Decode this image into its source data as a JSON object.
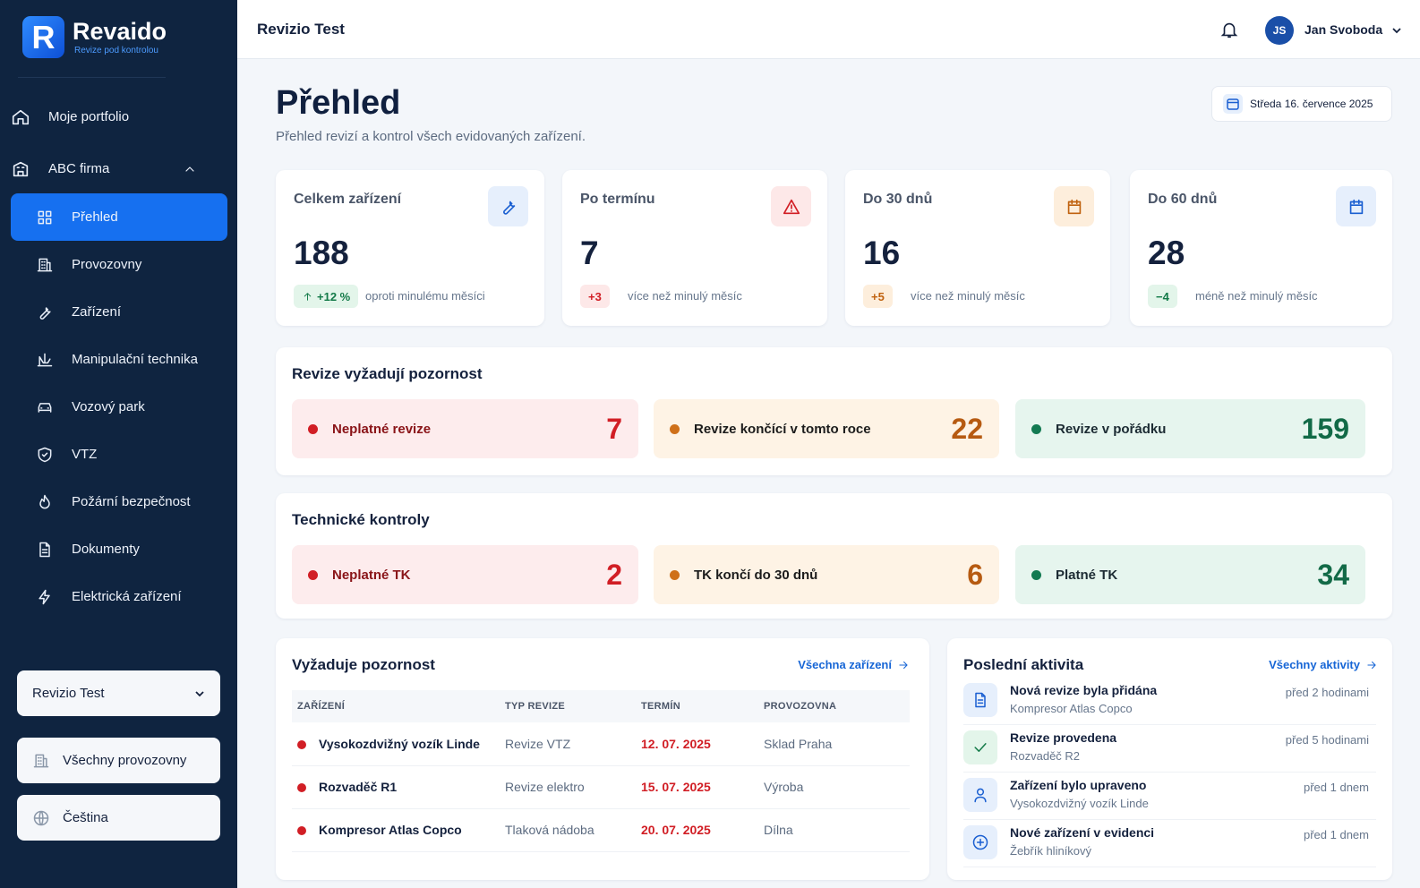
{
  "brand": {
    "name": "Revaido",
    "tagline": "Revize pod kontrolou",
    "logo_letter": "R"
  },
  "sidebar": {
    "top": [
      "Moje portfolio",
      "ABC firma"
    ],
    "items": [
      "Přehled",
      "Provozovny",
      "Zařízení",
      "Manipulační technika",
      "Vozový park",
      "VTZ",
      "Požární bezpečnost",
      "Dokumenty",
      "Elektrická zařízení"
    ],
    "selector": "Revizio Test",
    "buttons": [
      "Všechny provozovny",
      "Čeština"
    ]
  },
  "header": {
    "title": "Revizio Test",
    "user_initials": "JS",
    "user_name": "Jan Svoboda"
  },
  "page": {
    "title": "Přehled",
    "subtitle": "Přehled revizí a kontrol všech evidovaných zařízení.",
    "date": "Středa 16. července 2025"
  },
  "stats": [
    {
      "label": "Celkem zařízení",
      "value": 188,
      "delta": "+12 %",
      "note": "oproti minulému měsíci"
    },
    {
      "label": "Po termínu",
      "value": 7,
      "delta": "+3",
      "note": "více než minulý měsíc"
    },
    {
      "label": "Do 30 dnů",
      "value": 16,
      "delta": "+5",
      "note": "více než minulý měsíc"
    },
    {
      "label": "Do 60 dnů",
      "value": 28,
      "delta": "−4",
      "note": "méně než minulý měsíc"
    }
  ],
  "revisions": {
    "title": "Revize vyžadují pozornost",
    "items": [
      {
        "label": "Neplatné revize",
        "value": 7
      },
      {
        "label": "Revize končící v tomto roce",
        "value": 22
      },
      {
        "label": "Revize v pořádku",
        "value": 159
      }
    ]
  },
  "tk": {
    "title": "Technické kontroly",
    "items": [
      {
        "label": "Neplatné TK",
        "value": 2
      },
      {
        "label": "TK končí do 30 dnů",
        "value": 6
      },
      {
        "label": "Platné TK",
        "value": 34
      }
    ]
  },
  "attention": {
    "title": "Vyžaduje pozornost",
    "link": "Všechna zařízení",
    "columns": [
      "ZAŘÍZENÍ",
      "TYP REVIZE",
      "TERMÍN",
      "PROVOZOVNA"
    ],
    "rows": [
      [
        "Vysokozdvižný vozík Linde",
        "Revize VTZ",
        "12. 07. 2025",
        "Sklad Praha"
      ],
      [
        "Rozvaděč R1",
        "Revize elektro",
        "15. 07. 2025",
        "Výroba"
      ],
      [
        "Kompresor Atlas Copco",
        "Tlaková nádoba",
        "20. 07. 2025",
        "Dílna"
      ]
    ]
  },
  "activity": {
    "title": "Poslední aktivita",
    "link": "Všechny aktivity",
    "items": [
      {
        "title": "Nová revize byla přidána",
        "subtitle": "Kompresor Atlas Copco",
        "time": "před 2 hodinami"
      },
      {
        "title": "Revize provedena",
        "subtitle": "Rozvaděč R2",
        "time": "před 5 hodinami"
      },
      {
        "title": "Zařízení bylo upraveno",
        "subtitle": "Vysokozdvižný vozík Linde",
        "time": "před 1 dnem"
      },
      {
        "title": "Nové zařízení v evidenci",
        "subtitle": "Žebřík hliníkový",
        "time": "před 1 dnem"
      }
    ]
  }
}
